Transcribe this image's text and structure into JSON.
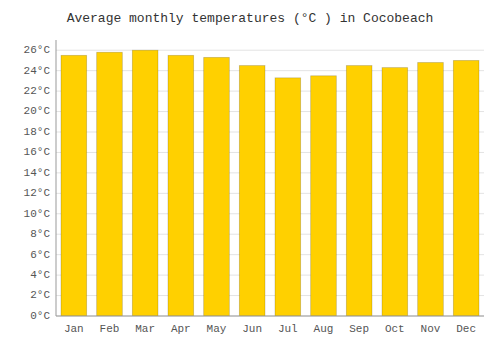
{
  "chart_data": {
    "type": "bar",
    "title": "Average monthly temperatures (°C ) in Cocobeach",
    "categories": [
      "Jan",
      "Feb",
      "Mar",
      "Apr",
      "May",
      "Jun",
      "Jul",
      "Aug",
      "Sep",
      "Oct",
      "Nov",
      "Dec"
    ],
    "values": [
      25.5,
      25.8,
      26.0,
      25.5,
      25.3,
      24.5,
      23.3,
      23.5,
      24.5,
      24.3,
      24.8,
      25.0
    ],
    "color": "#FFD000",
    "ylim": [
      0,
      27
    ],
    "yticks": [
      {
        "value": 0,
        "label": "0°C"
      },
      {
        "value": 2,
        "label": "2°C"
      },
      {
        "value": 4,
        "label": "4°C"
      },
      {
        "value": 6,
        "label": "6°C"
      },
      {
        "value": 8,
        "label": "8°C"
      },
      {
        "value": 10,
        "label": "10°C"
      },
      {
        "value": 12,
        "label": "12°C"
      },
      {
        "value": 14,
        "label": "14°C"
      },
      {
        "value": 16,
        "label": "16°C"
      },
      {
        "value": 18,
        "label": "18°C"
      },
      {
        "value": 20,
        "label": "20°C"
      },
      {
        "value": 22,
        "label": "22°C"
      },
      {
        "value": 24,
        "label": "24°C"
      },
      {
        "value": 26,
        "label": "26°C"
      }
    ],
    "grid": true
  }
}
